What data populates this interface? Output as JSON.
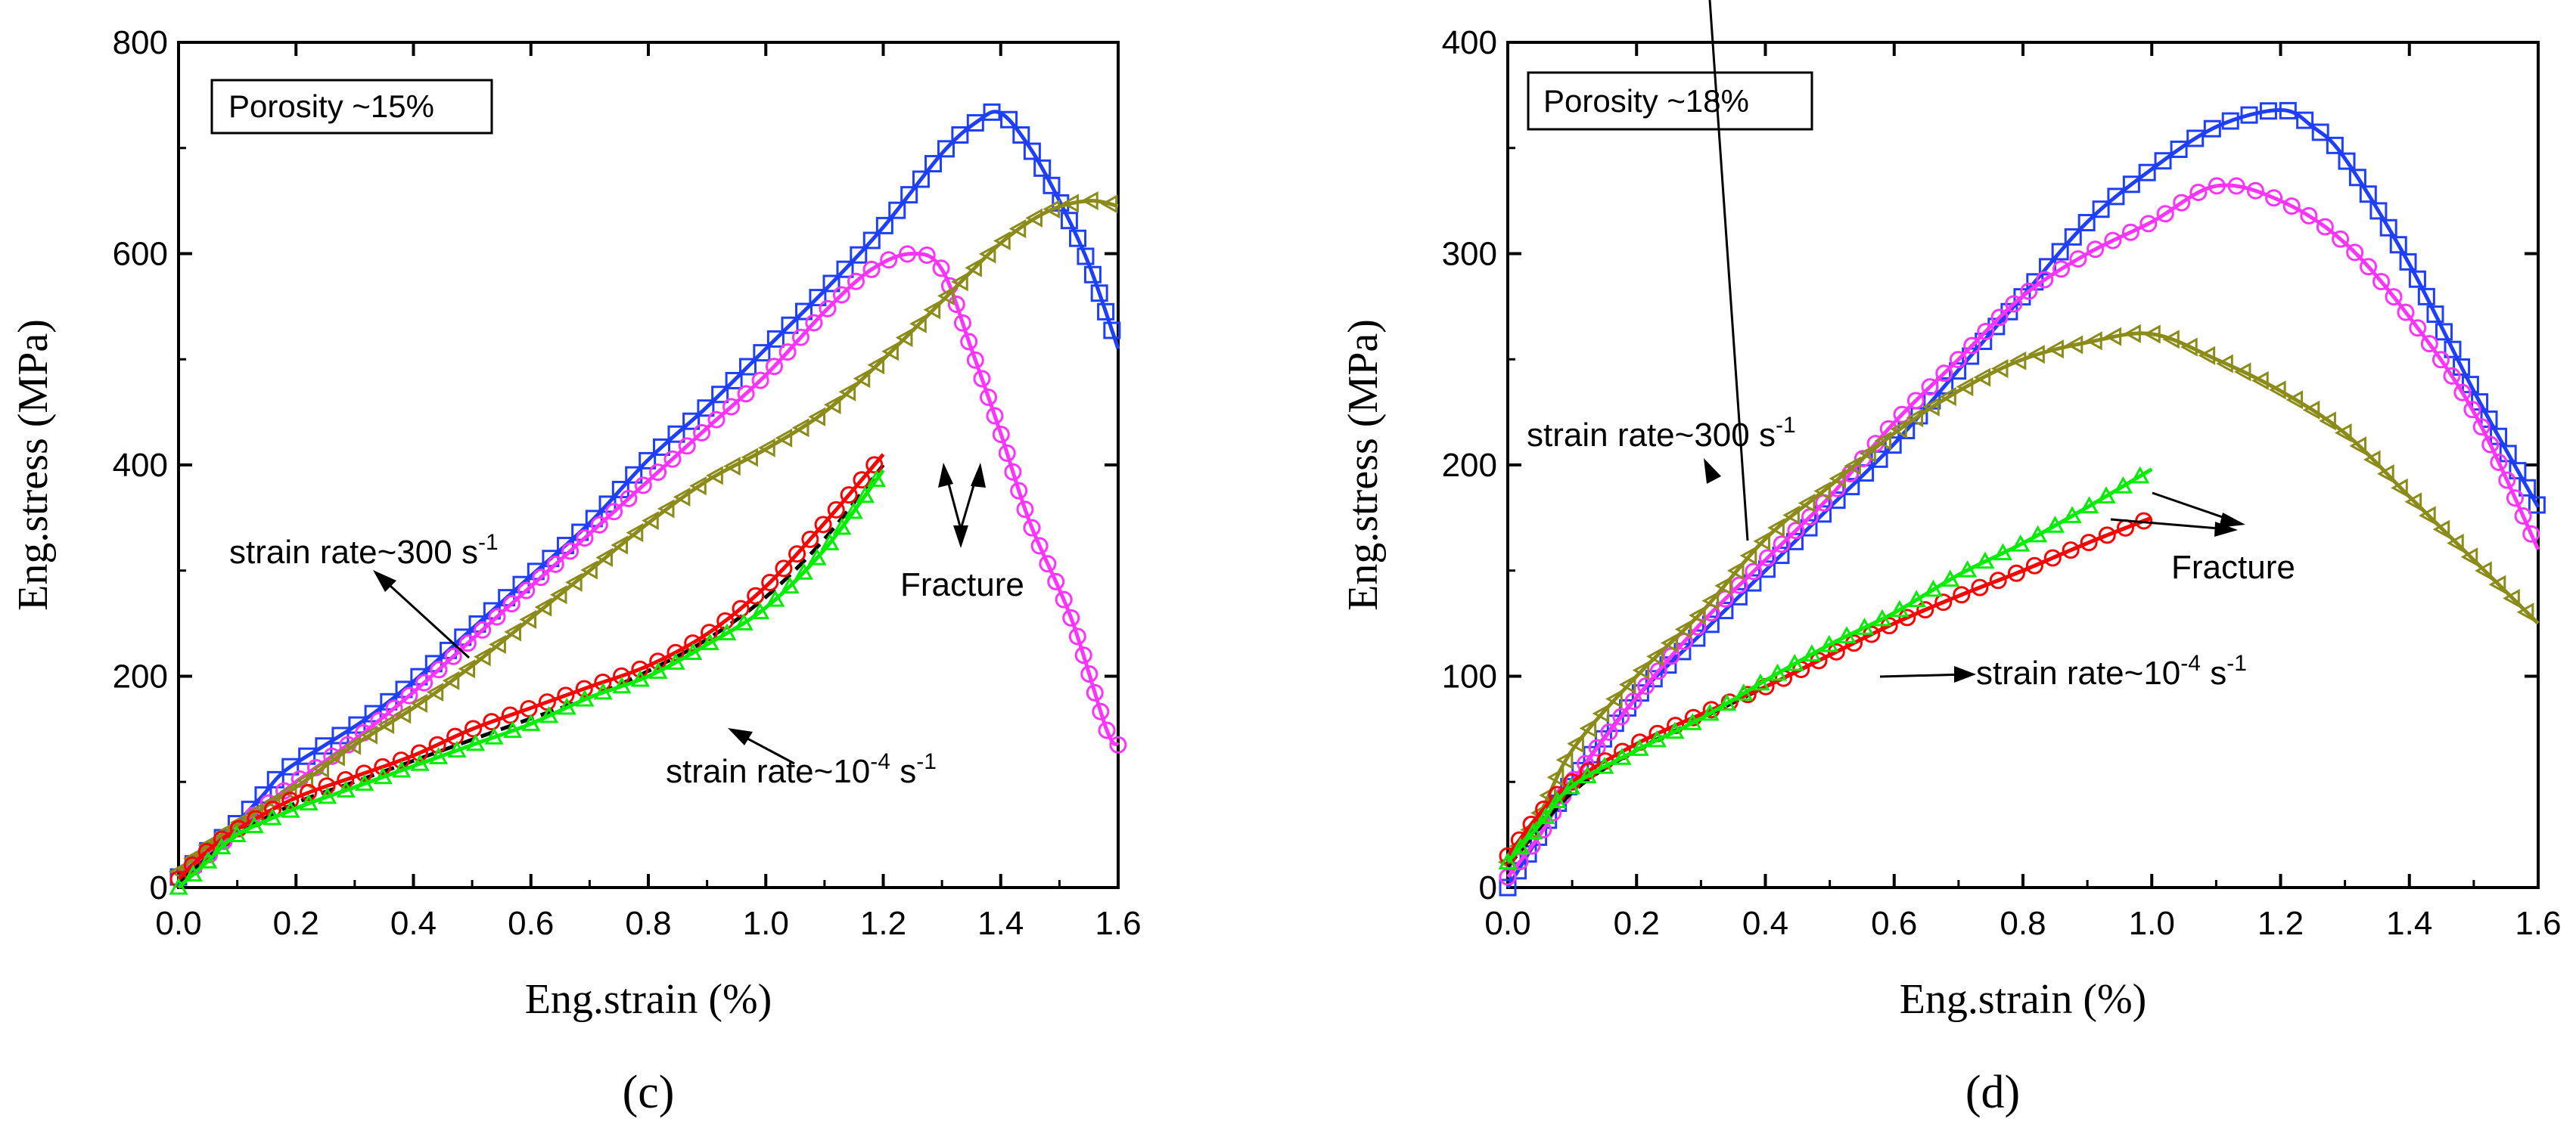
{
  "chart_data": [
    {
      "id": "c",
      "type": "line",
      "panel_label": "(c)",
      "xlabel": "Eng.strain (%)",
      "ylabel": "Eng.stress (MPa)",
      "xlim": [
        0,
        1.6
      ],
      "ylim": [
        0,
        800
      ],
      "xticks": [
        "0.0",
        "0.2",
        "0.4",
        "0.6",
        "0.8",
        "1.0",
        "1.2",
        "1.4",
        "1.6"
      ],
      "yticks": [
        "0",
        "200",
        "400",
        "600",
        "800"
      ],
      "legend_box": "Porosity ~15%",
      "series": [
        {
          "name": "blue-squares",
          "color": "#1f3fff",
          "marker": "square",
          "points": [
            [
              0,
              10
            ],
            [
              0.04,
              30
            ],
            [
              0.08,
              50
            ],
            [
              0.14,
              85
            ],
            [
              0.18,
              110
            ],
            [
              0.25,
              135
            ],
            [
              0.32,
              160
            ],
            [
              0.4,
              195
            ],
            [
              0.5,
              245
            ],
            [
              0.6,
              295
            ],
            [
              0.7,
              345
            ],
            [
              0.8,
              405
            ],
            [
              0.9,
              455
            ],
            [
              1.0,
              510
            ],
            [
              1.1,
              565
            ],
            [
              1.2,
              625
            ],
            [
              1.3,
              695
            ],
            [
              1.36,
              725
            ],
            [
              1.4,
              733
            ],
            [
              1.45,
              700
            ],
            [
              1.5,
              650
            ],
            [
              1.55,
              590
            ],
            [
              1.6,
              510
            ]
          ]
        },
        {
          "name": "magenta-circles",
          "color": "#ff33ff",
          "marker": "circle",
          "points": [
            [
              0,
              8
            ],
            [
              0.05,
              30
            ],
            [
              0.12,
              65
            ],
            [
              0.2,
              100
            ],
            [
              0.3,
              140
            ],
            [
              0.4,
              185
            ],
            [
              0.5,
              235
            ],
            [
              0.6,
              285
            ],
            [
              0.7,
              335
            ],
            [
              0.8,
              385
            ],
            [
              0.9,
              435
            ],
            [
              1.0,
              485
            ],
            [
              1.1,
              545
            ],
            [
              1.18,
              585
            ],
            [
              1.25,
              600
            ],
            [
              1.3,
              585
            ],
            [
              1.35,
              510
            ],
            [
              1.4,
              430
            ],
            [
              1.45,
              345
            ],
            [
              1.52,
              255
            ],
            [
              1.58,
              150
            ],
            [
              1.6,
              135
            ]
          ]
        },
        {
          "name": "olive-triangles",
          "color": "#8b8b1a",
          "marker": "triangle-left",
          "points": [
            [
              0,
              15
            ],
            [
              0.05,
              40
            ],
            [
              0.1,
              60
            ],
            [
              0.2,
              95
            ],
            [
              0.3,
              135
            ],
            [
              0.4,
              170
            ],
            [
              0.5,
              210
            ],
            [
              0.6,
              255
            ],
            [
              0.7,
              300
            ],
            [
              0.8,
              345
            ],
            [
              0.9,
              385
            ],
            [
              1.0,
              415
            ],
            [
              1.1,
              450
            ],
            [
              1.2,
              500
            ],
            [
              1.3,
              555
            ],
            [
              1.4,
              610
            ],
            [
              1.48,
              640
            ],
            [
              1.55,
              650
            ],
            [
              1.6,
              645
            ]
          ]
        },
        {
          "name": "black-dashed",
          "color": "#000000",
          "marker": "none",
          "points": [
            [
              0,
              5
            ],
            [
              0.1,
              50
            ],
            [
              0.2,
              80
            ],
            [
              0.3,
              100
            ],
            [
              0.4,
              120
            ],
            [
              0.5,
              140
            ],
            [
              0.6,
              160
            ],
            [
              0.7,
              180
            ],
            [
              0.8,
              205
            ],
            [
              0.9,
              235
            ],
            [
              1.0,
              275
            ],
            [
              1.1,
              330
            ],
            [
              1.2,
              400
            ]
          ]
        },
        {
          "name": "red-circles",
          "color": "#ff0000",
          "marker": "circle",
          "points": [
            [
              0,
              8
            ],
            [
              0.05,
              35
            ],
            [
              0.1,
              55
            ],
            [
              0.2,
              85
            ],
            [
              0.3,
              105
            ],
            [
              0.4,
              125
            ],
            [
              0.5,
              150
            ],
            [
              0.6,
              170
            ],
            [
              0.7,
              190
            ],
            [
              0.8,
              210
            ],
            [
              0.9,
              240
            ],
            [
              1.0,
              285
            ],
            [
              1.1,
              345
            ],
            [
              1.2,
              410
            ]
          ]
        },
        {
          "name": "green-triangles",
          "color": "#00ee00",
          "marker": "triangle-up",
          "points": [
            [
              0,
              0
            ],
            [
              0.05,
              25
            ],
            [
              0.1,
              50
            ],
            [
              0.2,
              75
            ],
            [
              0.3,
              95
            ],
            [
              0.4,
              115
            ],
            [
              0.5,
              135
            ],
            [
              0.6,
              155
            ],
            [
              0.7,
              180
            ],
            [
              0.8,
              200
            ],
            [
              0.9,
              230
            ],
            [
              1.0,
              265
            ],
            [
              1.1,
              320
            ],
            [
              1.2,
              395
            ]
          ]
        }
      ],
      "annotations": {
        "strain_rate_high": "strain rate~300 s",
        "strain_rate_low": "strain rate~10",
        "exp_high": "-1",
        "exp_low": "-4",
        "unit_low": " s",
        "exp_low_unit": "-1",
        "fracture": "Fracture"
      }
    },
    {
      "id": "d",
      "type": "line",
      "panel_label": "(d)",
      "xlabel": "Eng.strain (%)",
      "ylabel": "Eng.stress (MPa)",
      "xlim": [
        0,
        1.6
      ],
      "ylim": [
        0,
        400
      ],
      "xticks": [
        "0.0",
        "0.2",
        "0.4",
        "0.6",
        "0.8",
        "1.0",
        "1.2",
        "1.4",
        "1.6"
      ],
      "yticks": [
        "0",
        "100",
        "200",
        "300",
        "400"
      ],
      "legend_box": "Porosity ~18%",
      "series": [
        {
          "name": "blue-squares",
          "color": "#1f3fff",
          "marker": "square",
          "points": [
            [
              0,
              0
            ],
            [
              0.05,
              25
            ],
            [
              0.1,
              50
            ],
            [
              0.2,
              90
            ],
            [
              0.3,
              120
            ],
            [
              0.4,
              150
            ],
            [
              0.5,
              180
            ],
            [
              0.6,
              210
            ],
            [
              0.7,
              245
            ],
            [
              0.8,
              280
            ],
            [
              0.9,
              315
            ],
            [
              1.0,
              340
            ],
            [
              1.1,
              360
            ],
            [
              1.2,
              368
            ],
            [
              1.25,
              360
            ],
            [
              1.3,
              345
            ],
            [
              1.4,
              295
            ],
            [
              1.5,
              235
            ],
            [
              1.6,
              180
            ]
          ]
        },
        {
          "name": "magenta-circles",
          "color": "#ff33ff",
          "marker": "circle",
          "points": [
            [
              0,
              5
            ],
            [
              0.05,
              25
            ],
            [
              0.1,
              50
            ],
            [
              0.2,
              90
            ],
            [
              0.3,
              125
            ],
            [
              0.4,
              155
            ],
            [
              0.5,
              185
            ],
            [
              0.6,
              220
            ],
            [
              0.7,
              250
            ],
            [
              0.8,
              280
            ],
            [
              0.9,
              300
            ],
            [
              1.0,
              315
            ],
            [
              1.1,
              332
            ],
            [
              1.2,
              325
            ],
            [
              1.3,
              305
            ],
            [
              1.4,
              270
            ],
            [
              1.5,
              225
            ],
            [
              1.6,
              160
            ]
          ]
        },
        {
          "name": "olive-triangles",
          "color": "#8b8b1a",
          "marker": "triangle-left",
          "points": [
            [
              0,
              12
            ],
            [
              0.05,
              35
            ],
            [
              0.1,
              65
            ],
            [
              0.2,
              100
            ],
            [
              0.3,
              130
            ],
            [
              0.4,
              165
            ],
            [
              0.5,
              190
            ],
            [
              0.6,
              215
            ],
            [
              0.7,
              235
            ],
            [
              0.8,
              250
            ],
            [
              0.9,
              258
            ],
            [
              1.0,
              262
            ],
            [
              1.1,
              250
            ],
            [
              1.2,
              235
            ],
            [
              1.3,
              215
            ],
            [
              1.4,
              185
            ],
            [
              1.5,
              155
            ],
            [
              1.6,
              125
            ]
          ]
        },
        {
          "name": "black-dashed",
          "color": "#000000",
          "marker": "none",
          "points": [
            [
              0,
              10
            ],
            [
              0.1,
              45
            ],
            [
              0.2,
              65
            ],
            [
              0.3,
              80
            ],
            [
              0.4,
              95
            ],
            [
              0.5,
              110
            ],
            [
              0.6,
              125
            ],
            [
              0.7,
              138
            ],
            [
              0.8,
              150
            ],
            [
              0.9,
              163
            ],
            [
              1.0,
              175
            ]
          ]
        },
        {
          "name": "red-circles",
          "color": "#ff0000",
          "marker": "circle",
          "points": [
            [
              0,
              15
            ],
            [
              0.05,
              35
            ],
            [
              0.1,
              50
            ],
            [
              0.2,
              68
            ],
            [
              0.3,
              82
            ],
            [
              0.4,
              95
            ],
            [
              0.5,
              110
            ],
            [
              0.6,
              125
            ],
            [
              0.7,
              138
            ],
            [
              0.8,
              150
            ],
            [
              0.9,
              163
            ],
            [
              1.0,
              175
            ]
          ]
        },
        {
          "name": "green-triangles",
          "color": "#00ee00",
          "marker": "triangle-up",
          "points": [
            [
              0,
              12
            ],
            [
              0.05,
              30
            ],
            [
              0.1,
              48
            ],
            [
              0.2,
              65
            ],
            [
              0.3,
              80
            ],
            [
              0.4,
              98
            ],
            [
              0.5,
              115
            ],
            [
              0.6,
              130
            ],
            [
              0.7,
              148
            ],
            [
              0.8,
              163
            ],
            [
              0.9,
              180
            ],
            [
              1.0,
              198
            ]
          ]
        }
      ],
      "annotations": {
        "strain_rate_high": "strain rate~300 s",
        "strain_rate_low": "strain rate~10",
        "exp_high": "-1",
        "exp_low": "-4",
        "unit_low": " s",
        "exp_low_unit": "-1",
        "fracture": "Fracture"
      }
    }
  ]
}
